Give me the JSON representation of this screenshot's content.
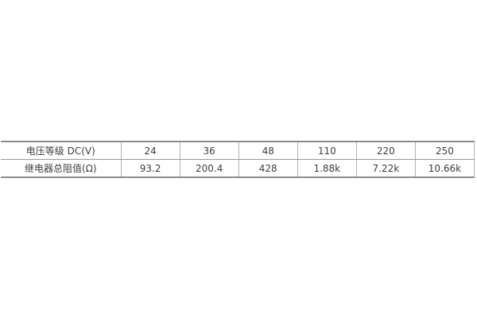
{
  "table": {
    "header_row": {
      "label": "电压等级 DC(V)",
      "values": [
        "24",
        "36",
        "48",
        "110",
        "220",
        "250"
      ]
    },
    "resistance_row": {
      "label": "继电器总阻值(Ω)",
      "values": [
        "93.2",
        "200.4",
        "428",
        "1.88k",
        "7.22k",
        "10.66k"
      ]
    }
  },
  "chart_data": {
    "type": "table",
    "title": "",
    "columns": [
      "电压等级 DC(V)",
      "24",
      "36",
      "48",
      "110",
      "220",
      "250"
    ],
    "rows": [
      [
        "继电器总阻值(Ω)",
        "93.2",
        "200.4",
        "428",
        "1.88k",
        "7.22k",
        "10.66k"
      ]
    ]
  },
  "colors": {
    "outer_border": "#8c8c8c",
    "row_divider": "#999999",
    "column_divider": "#b0b0b0",
    "text": "#3d3d3d",
    "background": "#ffffff"
  }
}
